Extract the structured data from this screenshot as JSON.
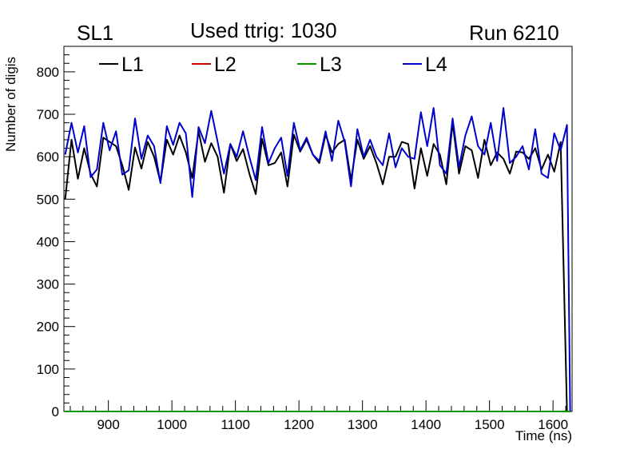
{
  "header": {
    "left_label": "SL1",
    "title": "Used ttrig: 1030",
    "right_label": "Run 6210"
  },
  "chart_data": {
    "type": "line",
    "title": "Used ttrig: 1030",
    "xlabel": "Time (ns)",
    "ylabel": "Number of digis",
    "xlim": [
      830,
      1630
    ],
    "ylim": [
      0,
      860
    ],
    "xticks": [
      900,
      1000,
      1100,
      1200,
      1300,
      1400,
      1500,
      1600
    ],
    "yticks": [
      0,
      100,
      200,
      300,
      400,
      500,
      600,
      700,
      800
    ],
    "legend_position": "top",
    "x": [
      832,
      842,
      852,
      862,
      872,
      882,
      892,
      902,
      912,
      922,
      932,
      942,
      952,
      962,
      972,
      982,
      992,
      1002,
      1012,
      1022,
      1032,
      1042,
      1052,
      1062,
      1072,
      1082,
      1092,
      1102,
      1112,
      1122,
      1132,
      1142,
      1152,
      1162,
      1172,
      1182,
      1192,
      1202,
      1212,
      1222,
      1232,
      1242,
      1252,
      1262,
      1272,
      1282,
      1292,
      1302,
      1312,
      1322,
      1332,
      1342,
      1352,
      1362,
      1372,
      1382,
      1392,
      1402,
      1412,
      1422,
      1432,
      1442,
      1452,
      1462,
      1472,
      1482,
      1492,
      1502,
      1512,
      1522,
      1532,
      1542,
      1552,
      1562,
      1572,
      1582,
      1592,
      1602,
      1612,
      1622,
      1627
    ],
    "series": [
      {
        "name": "L1",
        "color": "#000000",
        "values": [
          500,
          640,
          548,
          620,
          560,
          530,
          645,
          635,
          625,
          580,
          522,
          622,
          572,
          635,
          600,
          540,
          640,
          605,
          650,
          610,
          550,
          660,
          588,
          632,
          600,
          515,
          630,
          590,
          618,
          560,
          512,
          642,
          580,
          585,
          610,
          530,
          652,
          612,
          640,
          605,
          585,
          652,
          610,
          630,
          640,
          545,
          640,
          595,
          625,
          585,
          535,
          600,
          600,
          635,
          630,
          525,
          620,
          555,
          630,
          605,
          535,
          680,
          560,
          625,
          615,
          550,
          640,
          580,
          610,
          595,
          560,
          612,
          610,
          595,
          620,
          570,
          605,
          565,
          635,
          0,
          0
        ]
      },
      {
        "name": "L2",
        "color": "#cc0000",
        "values": [
          0,
          0,
          0,
          0,
          0,
          0,
          0,
          0,
          0,
          0,
          0,
          0,
          0,
          0,
          0,
          0,
          0,
          0,
          0,
          0,
          0,
          0,
          0,
          0,
          0,
          0,
          0,
          0,
          0,
          0,
          0,
          0,
          0,
          0,
          0,
          0,
          0,
          0,
          0,
          0,
          0,
          0,
          0,
          0,
          0,
          0,
          0,
          0,
          0,
          0,
          0,
          0,
          0,
          0,
          0,
          0,
          0,
          0,
          0,
          0,
          0,
          0,
          0,
          0,
          0,
          0,
          0,
          0,
          0,
          0,
          0,
          0,
          0,
          0,
          0,
          0,
          0,
          0,
          0,
          0,
          0
        ]
      },
      {
        "name": "L3",
        "color": "#009900",
        "values": [
          0,
          0,
          0,
          0,
          0,
          0,
          0,
          0,
          0,
          0,
          0,
          0,
          0,
          0,
          0,
          0,
          0,
          0,
          0,
          0,
          0,
          0,
          0,
          0,
          0,
          0,
          0,
          0,
          0,
          0,
          0,
          0,
          0,
          0,
          0,
          0,
          0,
          0,
          0,
          0,
          0,
          0,
          0,
          0,
          0,
          0,
          0,
          0,
          0,
          0,
          0,
          0,
          0,
          0,
          0,
          0,
          0,
          0,
          0,
          0,
          0,
          0,
          0,
          0,
          0,
          0,
          0,
          0,
          0,
          0,
          0,
          0,
          0,
          0,
          0,
          0,
          0,
          0,
          0,
          0,
          0
        ]
      },
      {
        "name": "L4",
        "color": "#0000cc",
        "values": [
          605,
          680,
          610,
          672,
          552,
          570,
          680,
          615,
          660,
          558,
          568,
          690,
          595,
          650,
          625,
          538,
          672,
          628,
          680,
          655,
          505,
          670,
          632,
          708,
          635,
          560,
          630,
          600,
          660,
          600,
          545,
          670,
          585,
          620,
          645,
          555,
          680,
          615,
          645,
          605,
          590,
          660,
          590,
          685,
          635,
          530,
          665,
          600,
          640,
          600,
          580,
          655,
          575,
          620,
          600,
          595,
          705,
          625,
          715,
          580,
          560,
          690,
          575,
          650,
          695,
          625,
          605,
          680,
          590,
          715,
          585,
          600,
          625,
          570,
          665,
          560,
          550,
          655,
          615,
          675,
          0
        ]
      }
    ]
  }
}
